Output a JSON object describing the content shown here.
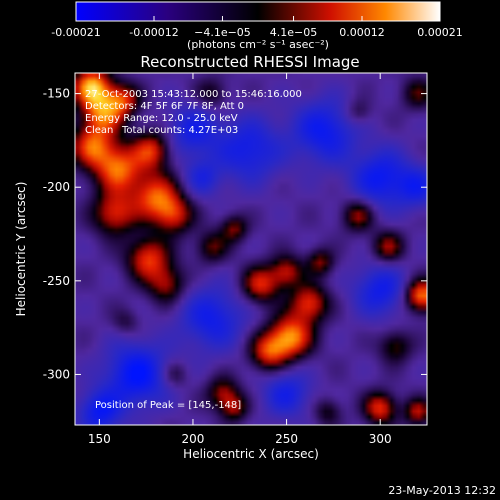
{
  "chart_data": {
    "type": "heatmap",
    "title": "Reconstructed RHESSI Image",
    "xlabel": "Heliocentric X (arcsec)",
    "ylabel": "Heliocentric Y (arcsec)",
    "xlim": [
      137,
      325
    ],
    "ylim": [
      -327,
      -139
    ],
    "x_ticks": [
      150,
      200,
      250,
      300
    ],
    "y_ticks": [
      -150,
      -200,
      -250,
      -300
    ],
    "colorbar": {
      "range": [
        -0.00021,
        0.00021
      ],
      "tick_values": [
        -0.00021,
        -0.00012,
        -4.1e-05,
        4.1e-05,
        0.00012,
        0.00021
      ],
      "tick_labels": [
        "-0.00021",
        "-0.00012",
        "−4.1e−05",
        "4.1e−05",
        "0.00012",
        "0.00021"
      ],
      "unit_label": "(photons cm⁻² s⁻¹ asec⁻²)"
    },
    "peak": {
      "x": 145,
      "y": -148
    },
    "blobs": [
      {
        "x": 146,
        "y": -146,
        "amp": 1.0,
        "s": 7
      },
      {
        "x": 152,
        "y": -160,
        "amp": 0.85,
        "s": 8
      },
      {
        "x": 163,
        "y": -153,
        "amp": 0.6,
        "s": 6
      },
      {
        "x": 146,
        "y": -178,
        "amp": 0.75,
        "s": 8
      },
      {
        "x": 160,
        "y": -190,
        "amp": 0.85,
        "s": 9
      },
      {
        "x": 178,
        "y": -180,
        "amp": 0.7,
        "s": 7
      },
      {
        "x": 180,
        "y": -205,
        "amp": 0.8,
        "s": 9
      },
      {
        "x": 158,
        "y": -214,
        "amp": 0.7,
        "s": 8
      },
      {
        "x": 190,
        "y": -215,
        "amp": 0.6,
        "s": 7
      },
      {
        "x": 176,
        "y": -238,
        "amp": 0.75,
        "s": 8
      },
      {
        "x": 186,
        "y": -252,
        "amp": 0.55,
        "s": 7
      },
      {
        "x": 210,
        "y": -232,
        "amp": 0.45,
        "s": 6
      },
      {
        "x": 222,
        "y": -222,
        "amp": 0.5,
        "s": 5
      },
      {
        "x": 236,
        "y": -252,
        "amp": 0.7,
        "s": 7
      },
      {
        "x": 250,
        "y": -245,
        "amp": 0.6,
        "s": 6
      },
      {
        "x": 262,
        "y": -262,
        "amp": 0.75,
        "s": 7
      },
      {
        "x": 252,
        "y": -280,
        "amp": 0.95,
        "s": 8
      },
      {
        "x": 240,
        "y": -288,
        "amp": 0.7,
        "s": 7
      },
      {
        "x": 268,
        "y": -240,
        "amp": 0.5,
        "s": 5
      },
      {
        "x": 288,
        "y": -215,
        "amp": 0.55,
        "s": 6
      },
      {
        "x": 304,
        "y": -232,
        "amp": 0.55,
        "s": 6
      },
      {
        "x": 322,
        "y": -258,
        "amp": 0.95,
        "s": 6
      },
      {
        "x": 308,
        "y": -285,
        "amp": 0.45,
        "s": 6
      },
      {
        "x": 216,
        "y": -310,
        "amp": 0.55,
        "s": 6
      },
      {
        "x": 222,
        "y": -318,
        "amp": 0.5,
        "s": 5
      },
      {
        "x": 300,
        "y": -318,
        "amp": 0.75,
        "s": 6
      },
      {
        "x": 320,
        "y": -320,
        "amp": 0.6,
        "s": 5
      },
      {
        "x": 272,
        "y": -320,
        "amp": 0.35,
        "s": 5
      },
      {
        "x": 190,
        "y": -300,
        "amp": 0.3,
        "s": 5
      },
      {
        "x": 164,
        "y": -272,
        "amp": 0.25,
        "s": 5
      },
      {
        "x": 320,
        "y": -150,
        "amp": 0.4,
        "s": 6
      },
      {
        "x": 288,
        "y": -160,
        "amp": 0.3,
        "s": 5
      },
      {
        "x": 210,
        "y": -150,
        "amp": 0.35,
        "s": 6
      },
      {
        "x": 200,
        "y": -170,
        "amp": -0.5,
        "s": 10
      },
      {
        "x": 230,
        "y": -180,
        "amp": -0.55,
        "s": 12
      },
      {
        "x": 270,
        "y": -170,
        "amp": -0.6,
        "s": 12
      },
      {
        "x": 300,
        "y": -195,
        "amp": -0.6,
        "s": 11
      },
      {
        "x": 300,
        "y": -255,
        "amp": -0.55,
        "s": 10
      },
      {
        "x": 210,
        "y": -270,
        "amp": -0.55,
        "s": 12
      },
      {
        "x": 170,
        "y": -300,
        "amp": -0.7,
        "s": 12
      },
      {
        "x": 150,
        "y": -320,
        "amp": -0.6,
        "s": 8
      },
      {
        "x": 250,
        "y": -310,
        "amp": -0.5,
        "s": 9
      },
      {
        "x": 320,
        "y": -200,
        "amp": -0.45,
        "s": 8
      },
      {
        "x": 205,
        "y": -195,
        "amp": -0.4,
        "s": 7
      }
    ]
  },
  "image_info": {
    "time_range": "27-Oct-2003 15:43:12.000 to 15:46:16.000",
    "detectors": "Detectors: 4F 5F 6F 7F 8F, Att 0",
    "energy_range": "Energy Range: 12.0 - 25.0 keV",
    "method": "Clean",
    "total_counts": "Total counts: 4.27E+03",
    "peak_label": "Position of Peak = [145,-148]"
  },
  "footer": {
    "timestamp": "23-May-2013 12:32"
  }
}
